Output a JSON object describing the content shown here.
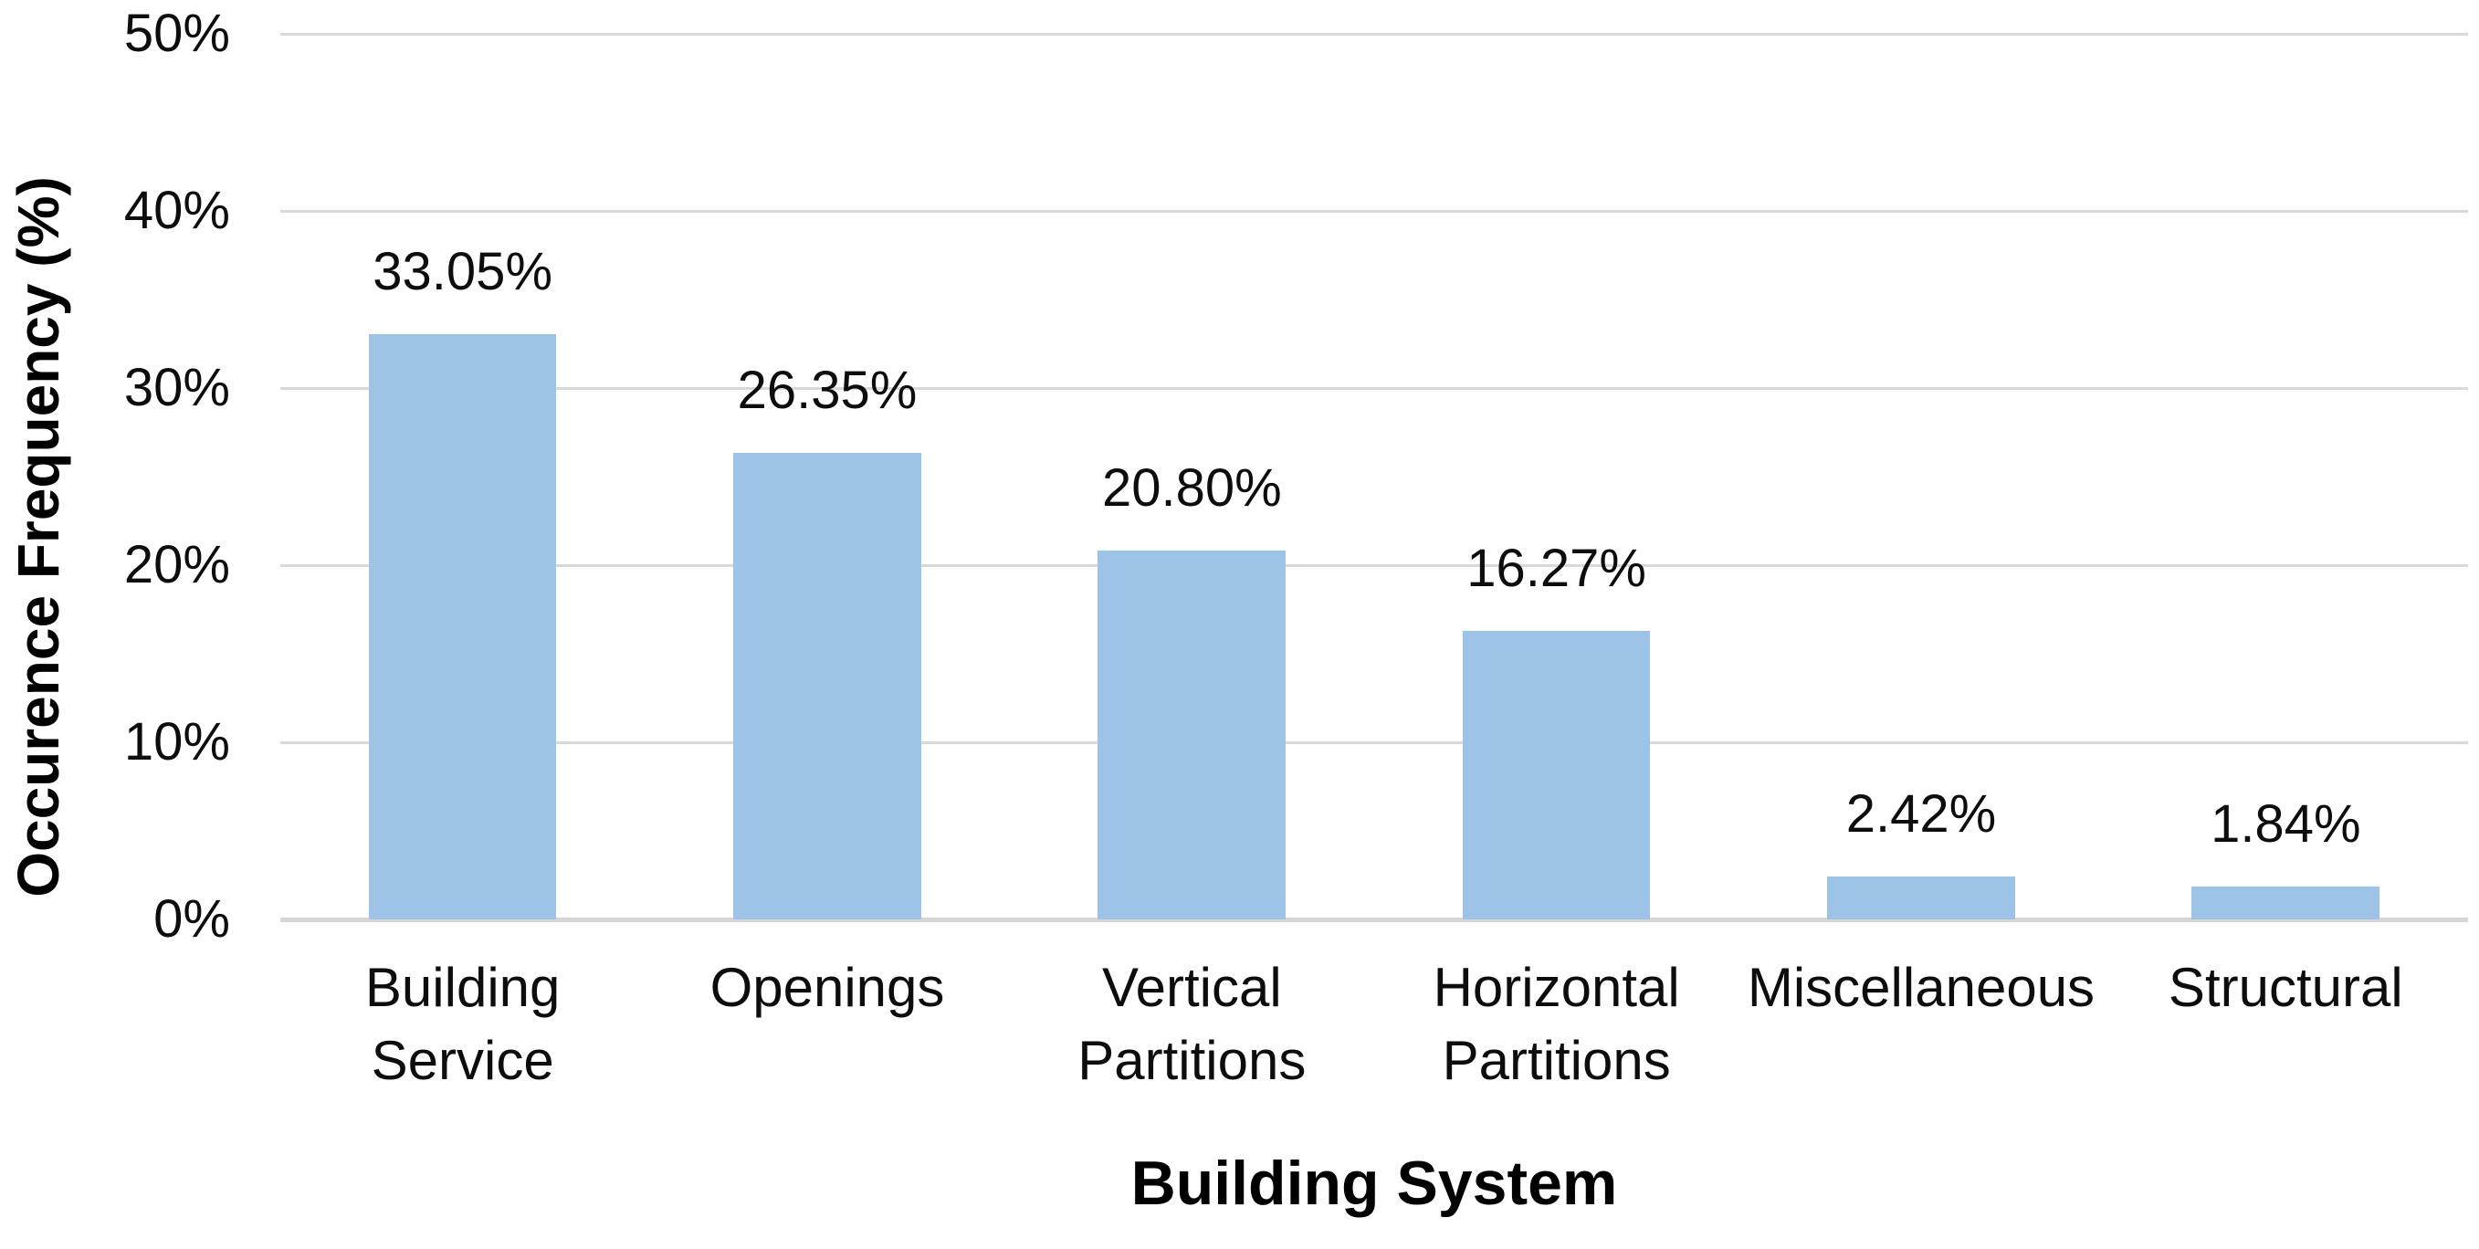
{
  "chart_data": {
    "type": "bar",
    "categories": [
      "Building Service",
      "Openings",
      "Vertical Partitions",
      "Horizontal Partitions",
      "Miscellaneous",
      "Structural"
    ],
    "values": [
      33.05,
      26.35,
      20.8,
      16.27,
      2.42,
      1.84
    ],
    "data_labels": [
      "33.05%",
      "26.35%",
      "20.80%",
      "16.27%",
      "2.42%",
      "1.84%"
    ],
    "xlabel": "Building System",
    "ylabel": "Occurence Frequency (%)",
    "ylim": [
      0,
      50
    ],
    "yticks": [
      0,
      10,
      20,
      30,
      40,
      50
    ],
    "ytick_labels": [
      "0%",
      "10%",
      "20%",
      "30%",
      "40%",
      "50%"
    ],
    "grid": true,
    "legend": false,
    "colors": {
      "bar_fill": "#9dc3e6",
      "gridline": "#d9d9d9",
      "axis_line": "#d6d6d6",
      "text": "#000000"
    }
  }
}
